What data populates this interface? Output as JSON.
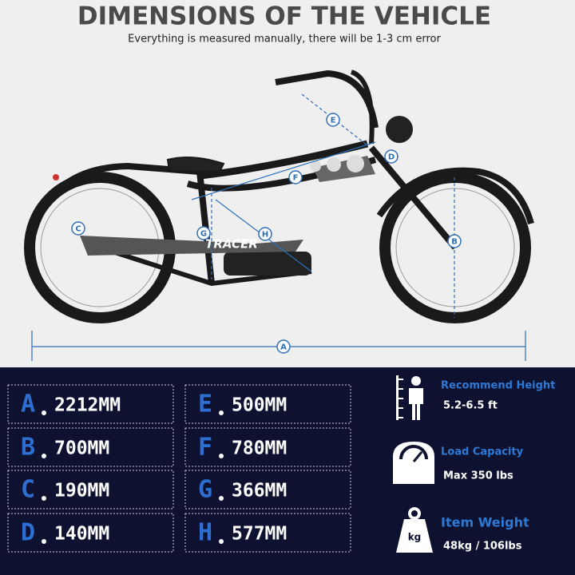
{
  "header": {
    "title": "DIMENSIONS OF THE VEHICLE",
    "subtitle": "Everything is measured manually, there will be 1-3 cm error"
  },
  "dimensions": [
    {
      "letter": "A",
      "value": "2212MM"
    },
    {
      "letter": "B",
      "value": "700MM"
    },
    {
      "letter": "C",
      "value": "190MM"
    },
    {
      "letter": "D",
      "value": "140MM"
    },
    {
      "letter": "E",
      "value": "500MM"
    },
    {
      "letter": "F",
      "value": "780MM"
    },
    {
      "letter": "G",
      "value": "366MM"
    },
    {
      "letter": "H",
      "value": "577MM"
    }
  ],
  "bike": {
    "brand": "TRACER"
  },
  "specs": [
    {
      "title": "Recommend Height",
      "value": "5.2-6.5 ft"
    },
    {
      "title": "Load Capacity",
      "value": "Max 350 lbs"
    },
    {
      "title": "Item Weight",
      "value": "48kg / 106lbs",
      "icon_label": "kg"
    }
  ]
}
